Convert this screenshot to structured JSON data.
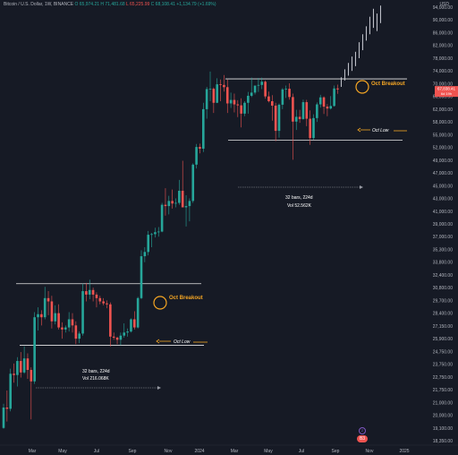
{
  "header": {
    "title": "Bitcoin / U.S. Dollar, 1W, BINANCE",
    "open": "O 65,974.21",
    "high": "H 71,481.68",
    "low": "L 65,225.99",
    "close": "C 68,108.41",
    "change": "+1,134.79 (+1.69%)"
  },
  "currency": "USD",
  "price_tags": {
    "price": "67,838.41",
    "countdown": "6d 19h"
  },
  "logo": {
    "text": "B3",
    "badge": "2"
  },
  "colors": {
    "bg": "#161a25",
    "up": "#26a69a",
    "down": "#ef5350",
    "accent": "#f5a623"
  },
  "chart_data": {
    "type": "candlestick",
    "symbol": "BTCUSD",
    "interval": "1W",
    "ylim": [
      18350,
      95000
    ],
    "y_ticks": [
      18350,
      19100,
      20000,
      21000,
      21750,
      22750,
      23750,
      24750,
      25900,
      27150,
      28400,
      29700,
      30800,
      32400,
      33800,
      35300,
      37000,
      39000,
      41000,
      43000,
      45000,
      47000,
      49000,
      52000,
      55000,
      58000,
      62000,
      66000,
      70000,
      74000,
      78000,
      82000,
      86000,
      90000,
      94000
    ],
    "y_tick_labels": [
      "18,350.00",
      "19,100.00",
      "20,000.00",
      "21,000.00",
      "21,750.00",
      "22,750.00",
      "23,750.00",
      "24,750.00",
      "25,900.00",
      "27,150.00",
      "28,400.00",
      "29,700.00",
      "30,800.00",
      "32,400.00",
      "33,800.00",
      "35,300.00",
      "37,000.00",
      "39,000.00",
      "41,000.00",
      "43,000.00",
      "45,000.00",
      "47,000.00",
      "49,000.00",
      "52,000.00",
      "55,000.00",
      "58,000.00",
      "62,000.00",
      "66,000.00",
      "70,000.00",
      "74,000.00",
      "78,000.00",
      "82,000.00",
      "86,000.00",
      "90,000.00",
      "94,000.00"
    ],
    "x_labels": [
      "Mar",
      "May",
      "Jul",
      "Sep",
      "Nov",
      "2024",
      "Mar",
      "May",
      "Jul",
      "Sep",
      "Nov",
      "2025"
    ],
    "candles_2023": [
      [
        19100,
        20900,
        19050,
        20600
      ],
      [
        20600,
        21700,
        19550,
        20500
      ],
      [
        20500,
        23400,
        20300,
        23000
      ],
      [
        23000,
        23800,
        22300,
        22900
      ],
      [
        22900,
        24300,
        22000,
        24000
      ],
      [
        24000,
        24700,
        22700,
        23100
      ],
      [
        23100,
        25200,
        23000,
        24200
      ],
      [
        24200,
        24600,
        22600,
        23300
      ],
      [
        23300,
        23500,
        19700,
        22400
      ],
      [
        22400,
        28500,
        22200,
        28000
      ],
      [
        28000,
        29000,
        26700,
        28300
      ],
      [
        28300,
        28700,
        27200,
        28000
      ],
      [
        28000,
        30900,
        27800,
        29900
      ],
      [
        29900,
        30500,
        28200,
        29600
      ],
      [
        29600,
        30100,
        26900,
        27600
      ],
      [
        27600,
        29200,
        27300,
        28400
      ],
      [
        28400,
        29300,
        26800,
        27000
      ],
      [
        27000,
        27500,
        25900,
        26800
      ],
      [
        26800,
        27200,
        26500,
        27000
      ],
      [
        27000,
        28500,
        26600,
        27800
      ],
      [
        27800,
        28400,
        26500,
        27200
      ],
      [
        27200,
        27600,
        25400,
        25900
      ],
      [
        25900,
        26600,
        25500,
        26400
      ],
      [
        26400,
        31300,
        26200,
        30500
      ],
      [
        30500,
        31400,
        29600,
        30200
      ],
      [
        30200,
        31800,
        29800,
        30600
      ],
      [
        30600,
        30800,
        29600,
        30200
      ],
      [
        30200,
        30400,
        29000,
        29900
      ],
      [
        29900,
        30100,
        29300,
        29600
      ],
      [
        29600,
        29900,
        29200,
        29400
      ],
      [
        29400,
        29700,
        28900,
        29300
      ],
      [
        29300,
        29500,
        25200,
        26100
      ],
      [
        26100,
        26500,
        25800,
        26000
      ],
      [
        26000,
        26100,
        25400,
        25800
      ],
      [
        25800,
        26500,
        25300,
        26200
      ],
      [
        26200,
        27400,
        26000,
        26500
      ],
      [
        26500,
        26900,
        26100,
        26600
      ],
      [
        26600,
        27900,
        26500,
        27800
      ],
      [
        27800,
        28600,
        26800,
        27000
      ],
      [
        27000,
        30000,
        26900,
        29900
      ],
      [
        29900,
        35200,
        29800,
        34500
      ],
      [
        34500,
        35600,
        33800,
        35000
      ],
      [
        35000,
        37900,
        34600,
        37300
      ],
      [
        37300,
        37600,
        35600,
        37400
      ],
      [
        37400,
        38400,
        36900,
        37700
      ],
      [
        37700,
        38500,
        37000,
        37800
      ],
      [
        37800,
        42300,
        37700,
        42000
      ],
      [
        42000,
        44600,
        40300,
        41800
      ],
      [
        41800,
        43400,
        40500,
        42600
      ],
      [
        42600,
        44400,
        41400,
        42200
      ],
      [
        42200,
        43000,
        41600,
        42300
      ],
      [
        42300,
        45900,
        42000,
        44200
      ]
    ],
    "candles_2024": [
      [
        44200,
        48900,
        42300,
        41600
      ],
      [
        41600,
        43500,
        38600,
        41800
      ],
      [
        41800,
        43000,
        39400,
        42600
      ],
      [
        42600,
        48500,
        42300,
        48300
      ],
      [
        48300,
        52800,
        47700,
        52100
      ],
      [
        52100,
        52900,
        50600,
        51700
      ],
      [
        51700,
        64000,
        50900,
        62000
      ],
      [
        62000,
        69000,
        59000,
        68300
      ],
      [
        68300,
        73800,
        64500,
        68400
      ],
      [
        68400,
        68800,
        60800,
        64000
      ],
      [
        64000,
        71700,
        63900,
        69800
      ],
      [
        69800,
        71300,
        64500,
        69600
      ],
      [
        69600,
        72700,
        67500,
        68900
      ],
      [
        68900,
        71300,
        60800,
        63800
      ],
      [
        63800,
        67200,
        62400,
        64900
      ],
      [
        64900,
        66900,
        61000,
        63500
      ],
      [
        63500,
        64800,
        59500,
        63200
      ],
      [
        63200,
        65400,
        56700,
        60600
      ],
      [
        60600,
        64500,
        59800,
        64000
      ],
      [
        64000,
        67400,
        60600,
        66200
      ],
      [
        66200,
        71900,
        65800,
        67200
      ],
      [
        67200,
        69300,
        66600,
        69400
      ],
      [
        69400,
        71800,
        67400,
        69600
      ],
      [
        69600,
        71900,
        68300,
        70600
      ],
      [
        70600,
        71000,
        65300,
        66000
      ],
      [
        66000,
        67500,
        64100,
        64500
      ],
      [
        64500,
        66400,
        58400,
        63100
      ],
      [
        63100,
        64000,
        53500,
        55900
      ],
      [
        55900,
        63800,
        54300,
        63400
      ],
      [
        63400,
        68600,
        62000,
        68200
      ],
      [
        68200,
        69400,
        65500,
        68400
      ],
      [
        68400,
        70100,
        65000,
        65800
      ],
      [
        65800,
        66900,
        49100,
        58100
      ],
      [
        58100,
        61800,
        56100,
        59600
      ],
      [
        59600,
        61800,
        57800,
        58900
      ],
      [
        58900,
        65000,
        58700,
        64200
      ],
      [
        64200,
        64900,
        57000,
        59000
      ],
      [
        59000,
        61600,
        52600,
        54200
      ],
      [
        54200,
        60400,
        53800,
        59200
      ],
      [
        59200,
        64100,
        58000,
        63500
      ],
      [
        63500,
        66500,
        62500,
        65700
      ],
      [
        65700,
        66000,
        60500,
        62800
      ],
      [
        62800,
        63600,
        59800,
        62200
      ],
      [
        62200,
        66100,
        61900,
        63000
      ],
      [
        63000,
        69400,
        62800,
        68500
      ],
      [
        68500,
        69700,
        66800,
        68200
      ]
    ],
    "projection_bars": [
      [
        69000,
        72000
      ],
      [
        71000,
        74500
      ],
      [
        72500,
        76500
      ],
      [
        74000,
        78500
      ],
      [
        75500,
        80000
      ],
      [
        78000,
        83000
      ],
      [
        80500,
        85500
      ],
      [
        83500,
        88000
      ],
      [
        85500,
        91000
      ],
      [
        87500,
        93500
      ],
      [
        86500,
        92000
      ],
      [
        89000,
        94500
      ]
    ],
    "annotations": {
      "breakout_label": "Oct Breakout",
      "low_label": "Oct Low",
      "range1_bars": "32 bars, 224d",
      "range1_vol": "Vol 216.068K",
      "range2_bars": "32 bars, 224d",
      "range2_vol": "Vol 52.562K",
      "range1_top": 31300,
      "range1_bottom": 25300,
      "range2_top": 71500,
      "range2_bottom": 53700
    },
    "grid": false
  }
}
